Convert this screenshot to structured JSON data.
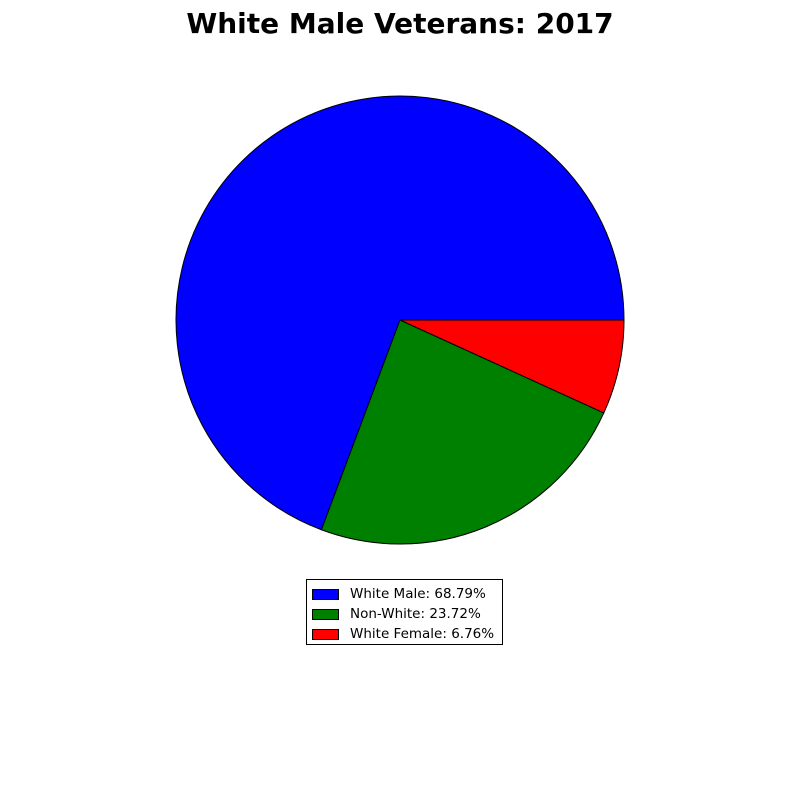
{
  "chart_data": {
    "type": "pie",
    "title": "White Male Veterans: 2017",
    "categories": [
      "White Male",
      "Non-White",
      "White Female"
    ],
    "values": [
      68.79,
      23.72,
      6.76
    ],
    "legend_labels": [
      "White Male: 68.79%",
      "Non-White: 23.72%",
      "White Female: 6.76%"
    ],
    "colors": [
      "#0000ff",
      "#008000",
      "#ff0000"
    ],
    "legend_placement": "bottom-center"
  }
}
